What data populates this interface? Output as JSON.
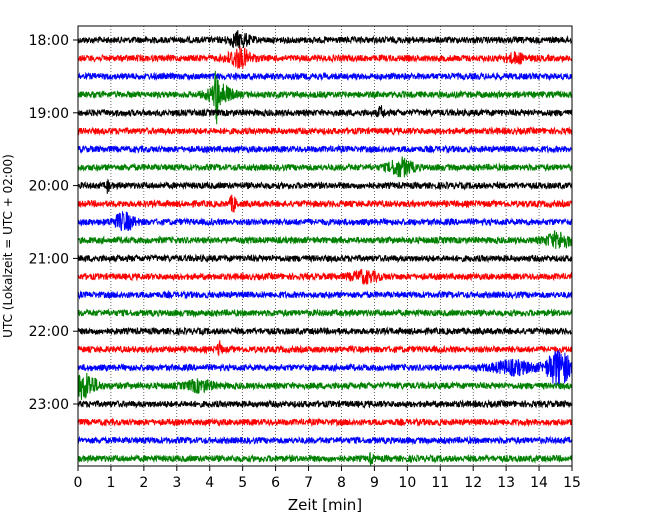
{
  "chart_data": {
    "type": "line",
    "xlabel": "Zeit  [min]",
    "ylabel": "UTC (Lokalzeit = UTC + 02:00)",
    "xlim": [
      0,
      15
    ],
    "x_ticks": [
      0,
      1,
      2,
      3,
      4,
      5,
      6,
      7,
      8,
      9,
      10,
      11,
      12,
      13,
      14,
      15
    ],
    "y_tick_labels": [
      "18:00",
      "19:00",
      "20:00",
      "21:00",
      "22:00",
      "23:00"
    ],
    "grid": "vertical-dotted",
    "trace_colors": [
      "#000000",
      "#ff0000",
      "#0000ff",
      "#008000"
    ],
    "traces": [
      {
        "start": "18:00"
      },
      {
        "start": "18:15"
      },
      {
        "start": "18:30"
      },
      {
        "start": "18:45"
      },
      {
        "start": "19:00"
      },
      {
        "start": "19:15"
      },
      {
        "start": "19:30"
      },
      {
        "start": "19:45"
      },
      {
        "start": "20:00"
      },
      {
        "start": "20:15"
      },
      {
        "start": "20:30"
      },
      {
        "start": "20:45"
      },
      {
        "start": "21:00"
      },
      {
        "start": "21:15"
      },
      {
        "start": "21:30"
      },
      {
        "start": "21:45"
      },
      {
        "start": "22:00"
      },
      {
        "start": "22:15"
      },
      {
        "start": "22:30"
      },
      {
        "start": "22:45"
      },
      {
        "start": "23:00"
      },
      {
        "start": "23:15"
      },
      {
        "start": "23:30"
      },
      {
        "start": "23:45"
      }
    ]
  }
}
